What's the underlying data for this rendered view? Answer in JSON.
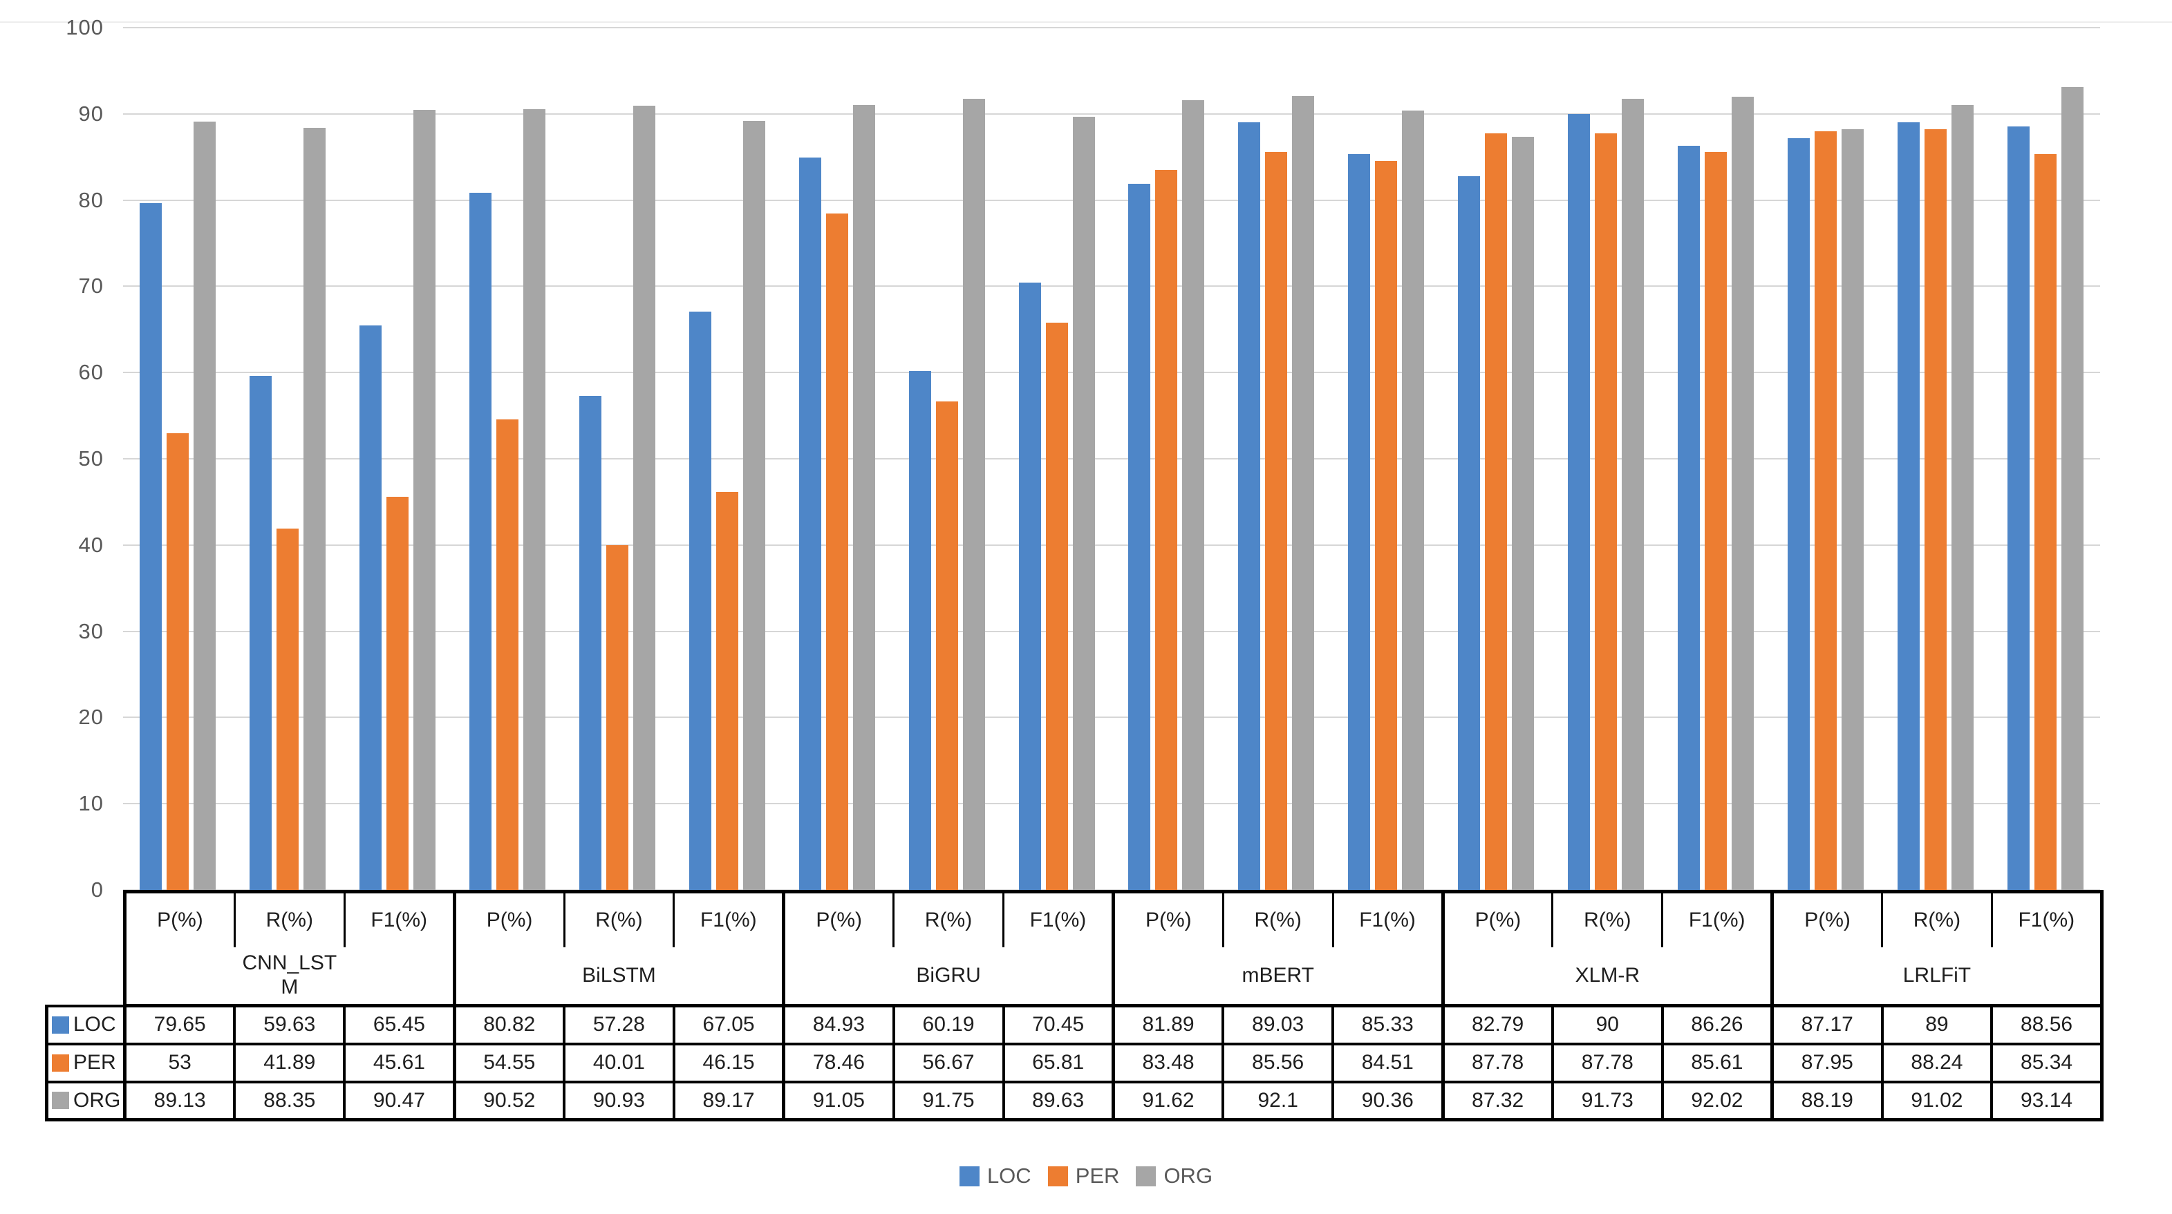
{
  "chart_data": {
    "type": "bar",
    "title": "",
    "models": [
      "CNN_LSTM",
      "BiLSTM",
      "BiGRU",
      "mBERT",
      "XLM-R",
      "LRLFiT"
    ],
    "metrics": [
      "P(%)",
      "R(%)",
      "F1(%)"
    ],
    "series": [
      {
        "name": "LOC",
        "color": "#4E86C8",
        "values": [
          79.65,
          59.63,
          65.45,
          80.82,
          57.28,
          67.05,
          84.93,
          60.19,
          70.45,
          81.89,
          89.03,
          85.33,
          82.79,
          90,
          86.26,
          87.17,
          89,
          88.56
        ]
      },
      {
        "name": "PER",
        "color": "#ED7D31",
        "values": [
          53,
          41.89,
          45.61,
          54.55,
          40.01,
          46.15,
          78.46,
          56.67,
          65.81,
          83.48,
          85.56,
          84.51,
          87.78,
          87.78,
          85.61,
          87.95,
          88.24,
          85.34
        ]
      },
      {
        "name": "ORG",
        "color": "#A6A6A6",
        "values": [
          89.13,
          88.35,
          90.47,
          90.52,
          90.93,
          89.17,
          91.05,
          91.75,
          89.63,
          91.62,
          92.1,
          90.36,
          87.32,
          91.73,
          92.02,
          88.19,
          91.02,
          93.14
        ]
      }
    ],
    "y_axis": {
      "min": 0,
      "max": 100,
      "step": 10,
      "ticks": [
        100,
        90,
        80,
        70,
        60,
        50,
        40,
        30,
        20,
        10,
        0
      ]
    },
    "legend": [
      "LOC",
      "PER",
      "ORG"
    ],
    "legend_position": "bottom",
    "grid": true,
    "grid_color": "#d6d6d6",
    "axis_text_color": "#595959",
    "table_border_color": "#000000"
  }
}
